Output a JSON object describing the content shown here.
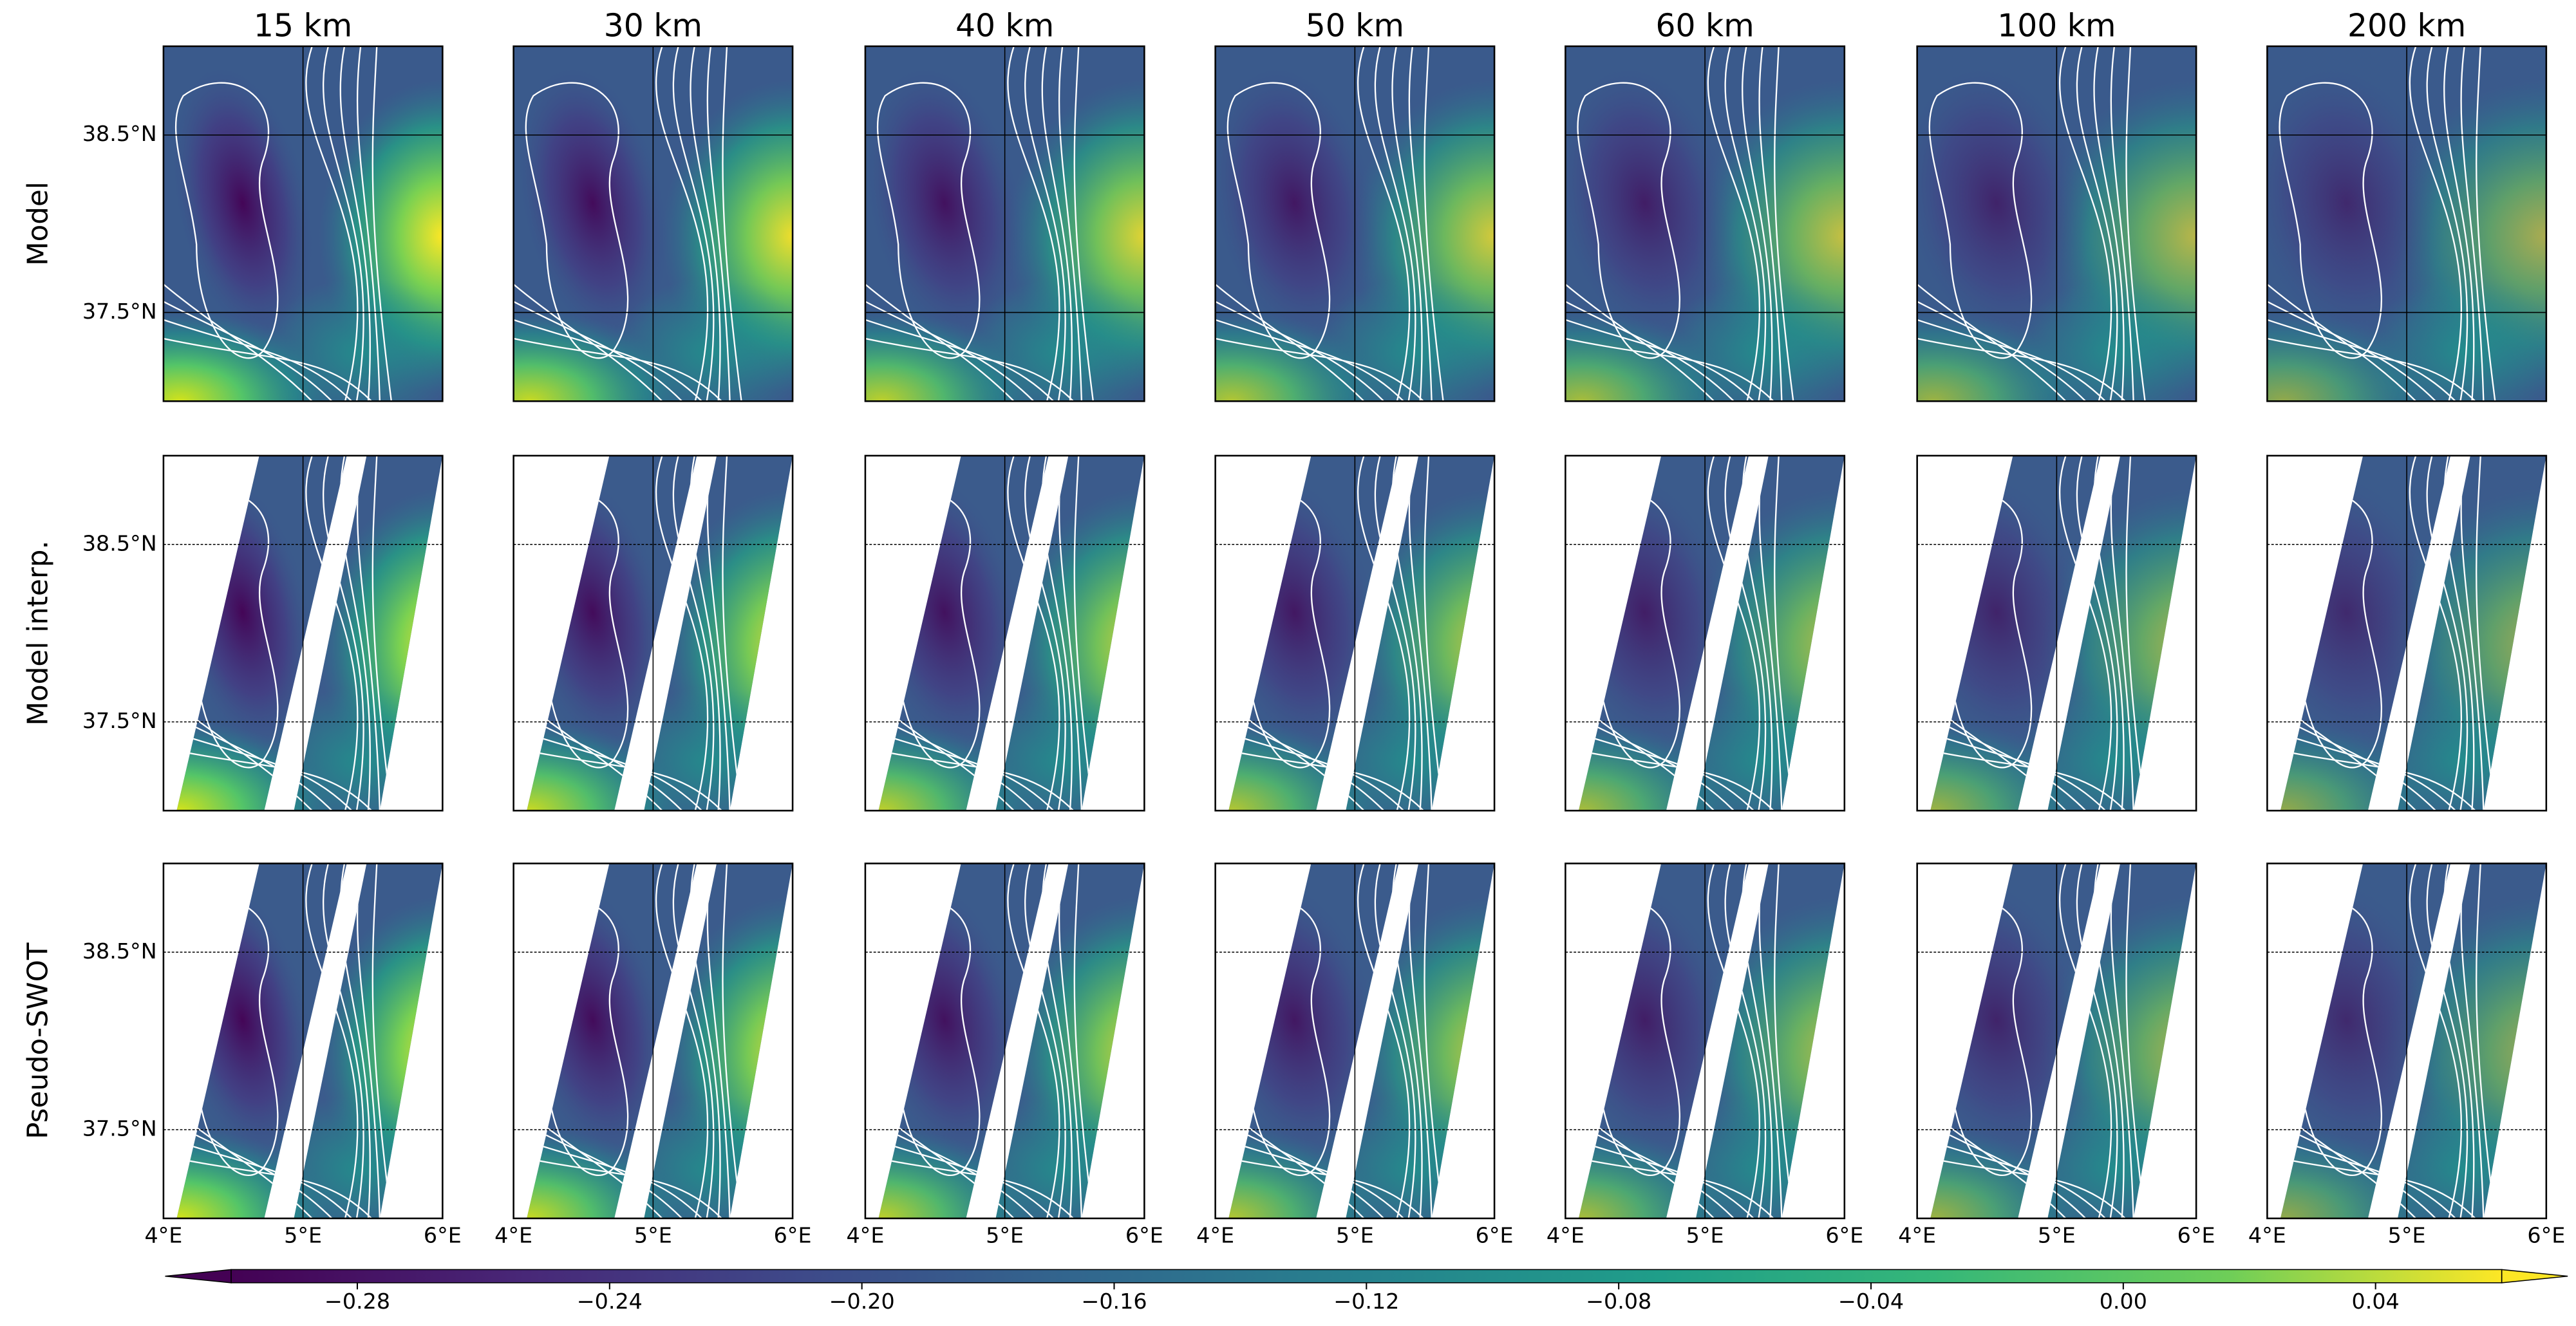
{
  "chart_data": {
    "type": "heatmap",
    "colormap": "viridis",
    "extend": "both",
    "columns": [
      "15 km",
      "30 km",
      "40 km",
      "50 km",
      "60 km",
      "100 km",
      "200 km"
    ],
    "rows": [
      "Model",
      "Model interp.",
      "Pseudo-SWOT"
    ],
    "xlim": [
      4,
      6
    ],
    "ylim": [
      37,
      39
    ],
    "xticks": [
      {
        "value": 4,
        "label": "4°E"
      },
      {
        "value": 5,
        "label": "5°E"
      },
      {
        "value": 6,
        "label": "6°E"
      }
    ],
    "yticks": [
      {
        "value": 37.5,
        "label": "37.5°N"
      },
      {
        "value": 38.5,
        "label": "38.5°N"
      }
    ],
    "grid": true,
    "clim": [
      -0.3,
      0.06
    ],
    "cticks": [
      {
        "value": -0.28,
        "label": "−0.28"
      },
      {
        "value": -0.24,
        "label": "−0.24"
      },
      {
        "value": -0.2,
        "label": "−0.20"
      },
      {
        "value": -0.16,
        "label": "−0.16"
      },
      {
        "value": -0.12,
        "label": "−0.12"
      },
      {
        "value": -0.08,
        "label": "−0.08"
      },
      {
        "value": -0.04,
        "label": "−0.04"
      },
      {
        "value": 0,
        "label": "0.00"
      },
      0.04
    ]
  }
}
